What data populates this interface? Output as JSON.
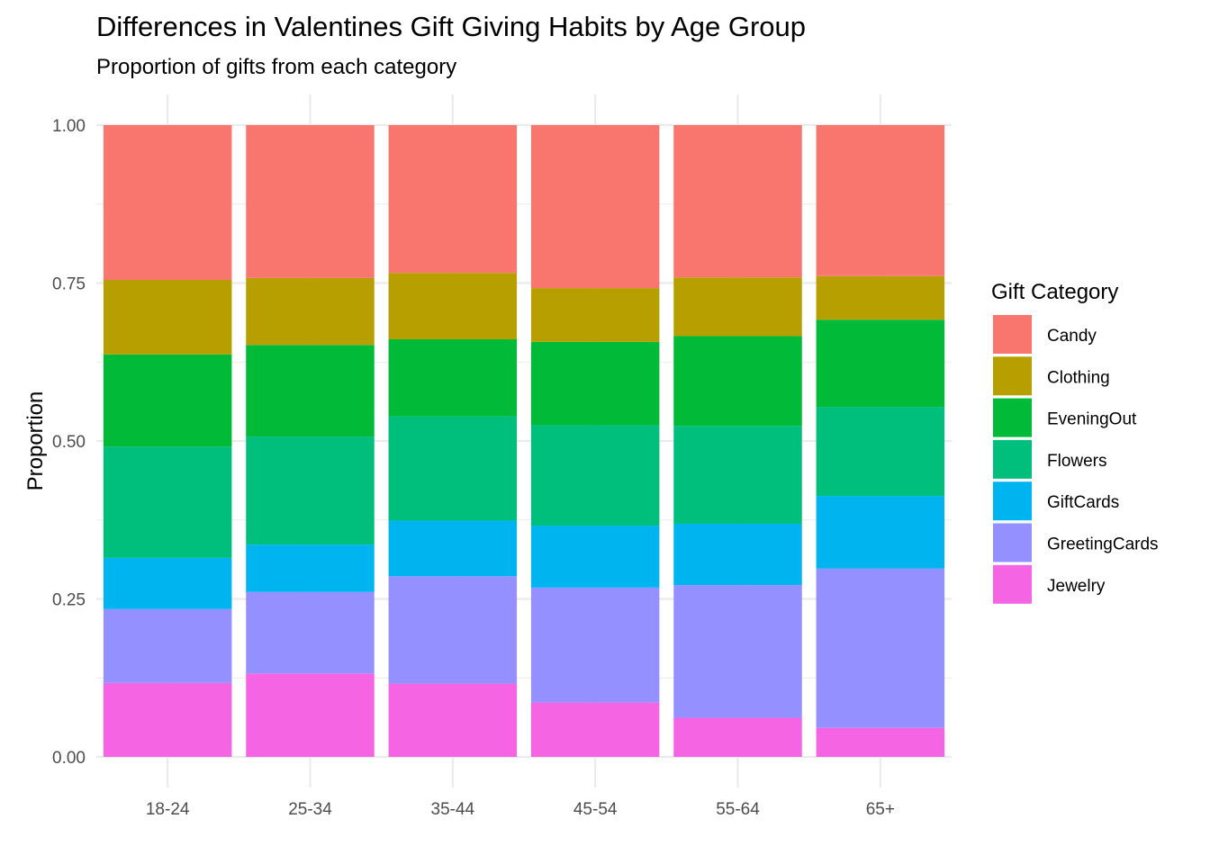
{
  "chart_data": {
    "type": "bar",
    "stacked": true,
    "title": "Differences in Valentines Gift Giving Habits by Age Group",
    "subtitle": "Proportion of gifts from each category",
    "xlabel": "",
    "ylabel": "Proportion",
    "ylim": [
      0,
      1
    ],
    "yticks": [
      "0.00",
      "0.25",
      "0.50",
      "0.75",
      "1.00"
    ],
    "ytick_values": [
      0,
      0.25,
      0.5,
      0.75,
      1.0
    ],
    "categories": [
      "18-24",
      "25-34",
      "35-44",
      "45-54",
      "55-64",
      "65+"
    ],
    "legend": {
      "title": "Gift Category",
      "position": "right"
    },
    "grid": true,
    "series": [
      {
        "name": "Candy",
        "color": "#F8766D",
        "values": [
          0.245,
          0.242,
          0.234,
          0.258,
          0.241,
          0.239
        ]
      },
      {
        "name": "Clothing",
        "color": "#B79F00",
        "values": [
          0.118,
          0.106,
          0.105,
          0.085,
          0.093,
          0.069
        ]
      },
      {
        "name": "EveningOut",
        "color": "#00BA38",
        "values": [
          0.146,
          0.145,
          0.122,
          0.132,
          0.142,
          0.138
        ]
      },
      {
        "name": "Flowers",
        "color": "#00BF7D",
        "values": [
          0.176,
          0.171,
          0.165,
          0.159,
          0.155,
          0.141
        ]
      },
      {
        "name": "GiftCards",
        "color": "#00B4EF",
        "values": [
          0.081,
          0.075,
          0.088,
          0.098,
          0.097,
          0.115
        ]
      },
      {
        "name": "GreetingCards",
        "color": "#9590FF",
        "values": [
          0.117,
          0.129,
          0.17,
          0.182,
          0.21,
          0.252
        ]
      },
      {
        "name": "Jewelry",
        "color": "#F564E3",
        "values": [
          0.117,
          0.132,
          0.116,
          0.086,
          0.062,
          0.046
        ]
      }
    ]
  }
}
